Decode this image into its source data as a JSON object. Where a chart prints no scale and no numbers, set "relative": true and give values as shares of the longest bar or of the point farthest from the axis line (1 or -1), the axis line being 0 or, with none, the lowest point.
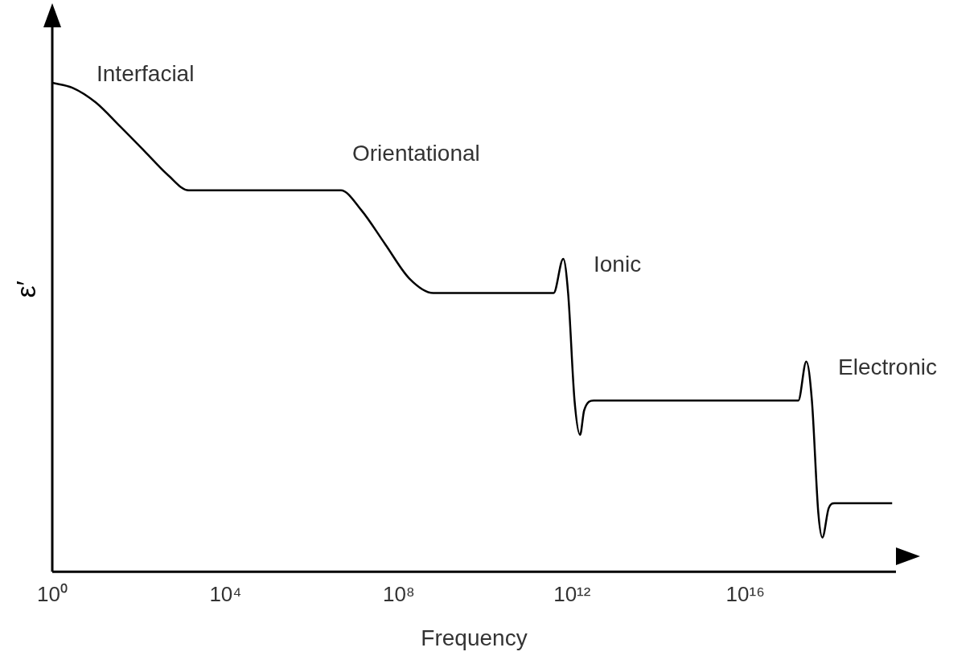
{
  "chart_data": {
    "type": "line",
    "relative": true,
    "xlabel": "Frequency",
    "ylabel": "ε′",
    "log": "x",
    "grid": false,
    "legend": false,
    "tick_labels": "x",
    "line_style": "solid",
    "xlim": [
      1,
      3e+19
    ],
    "xticks": [
      {
        "value": 1,
        "label": "10⁰"
      },
      {
        "value": 10000.0,
        "label": "10⁴"
      },
      {
        "value": 100000000.0,
        "label": "10⁸"
      },
      {
        "value": 1000000000000.0,
        "label": "10¹²"
      },
      {
        "value": 1e+16,
        "label": "10¹⁶"
      }
    ],
    "x": [
      1,
      2.9,
      10,
      37.5,
      135,
      484,
      1406,
      2450000.0,
      4600000.0,
      13500000.0,
      48400000.0,
      174000000.0,
      625000000.0,
      375000000000.0,
      625000000000.0,
      810000000000.0,
      1140000000000.0,
      1530000000000.0,
      1900000000000.0,
      3160000000000.0,
      1.67e+17,
      2.55e+17,
      3.44e+17,
      4.84e+17,
      6e+17,
      8.4e+17,
      1.14e+18,
      2.45e+19
    ],
    "series": [
      {
        "color": "#000000",
        "values": [
          1.0,
          0.99,
          0.96,
          0.91,
          0.86,
          0.81,
          0.78,
          0.78,
          0.78,
          0.74,
          0.67,
          0.6,
          0.57,
          0.57,
          0.64,
          0.57,
          0.35,
          0.28,
          0.33,
          0.35,
          0.35,
          0.43,
          0.35,
          0.12,
          0.07,
          0.13,
          0.14,
          0.14
        ]
      }
    ],
    "annotations": [
      "Interfacial",
      "Orientational",
      "Ionic",
      "Electronic"
    ]
  }
}
